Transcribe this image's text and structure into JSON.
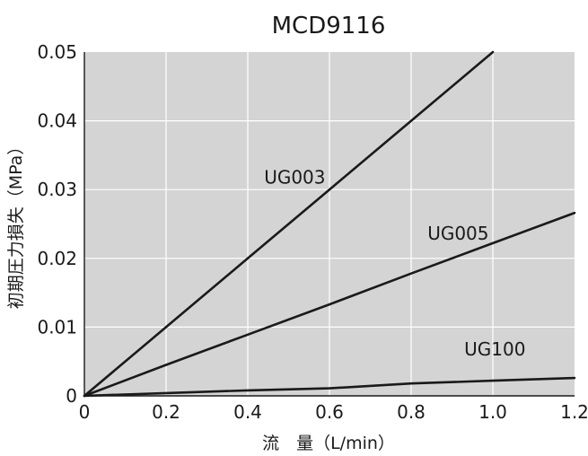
{
  "chart_data": {
    "type": "line",
    "title": "MCD9116",
    "xlabel": "流　量（L/min）",
    "ylabel": "初期圧力損失（MPa）",
    "xlim": [
      0,
      1.2
    ],
    "ylim": [
      0,
      0.05
    ],
    "x_ticks": [
      "0",
      "0.2",
      "0.4",
      "0.6",
      "0.8",
      "1.0",
      "1.2"
    ],
    "y_ticks": [
      "0",
      "0.01",
      "0.02",
      "0.03",
      "0.04",
      "0.05"
    ],
    "grid": true,
    "plot_background": "#d4d4d4",
    "grid_color": "#ffffff",
    "line_color": "#1a1a1a",
    "series": [
      {
        "name": "UG003",
        "x": [
          0,
          0.2,
          0.4,
          0.6,
          0.8,
          1.0
        ],
        "y": [
          0,
          0.01,
          0.02,
          0.03,
          0.04,
          0.05
        ]
      },
      {
        "name": "UG005",
        "x": [
          0,
          0.2,
          0.4,
          0.6,
          0.8,
          1.0,
          1.2
        ],
        "y": [
          0,
          0.0045,
          0.0089,
          0.0133,
          0.0178,
          0.0222,
          0.0266
        ]
      },
      {
        "name": "UG100",
        "x": [
          0,
          0.2,
          0.4,
          0.6,
          0.8,
          1.0,
          1.2
        ],
        "y": [
          0,
          0.0004,
          0.0008,
          0.0011,
          0.0018,
          0.0022,
          0.0026
        ]
      }
    ]
  }
}
